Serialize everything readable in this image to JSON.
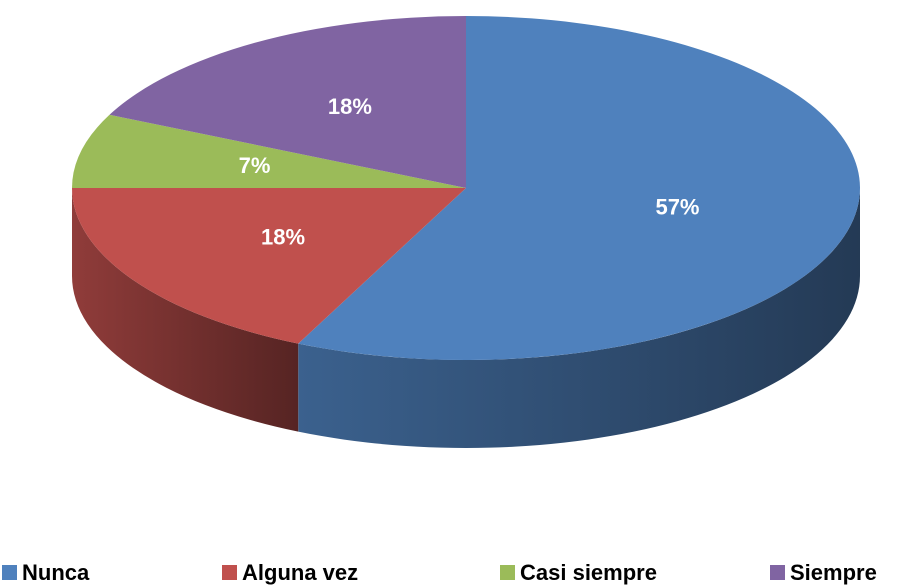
{
  "chart_data": {
    "type": "pie",
    "categories": [
      "Nunca",
      "Alguna vez",
      "Casi siempre",
      "Siempre"
    ],
    "values": [
      57,
      18,
      7,
      18
    ],
    "value_labels": [
      "57%",
      "18%",
      "7%",
      "18%"
    ],
    "colors": [
      "#4f81bd",
      "#c0504d",
      "#9bbb59",
      "#8064a2"
    ],
    "legend": "bottom"
  }
}
